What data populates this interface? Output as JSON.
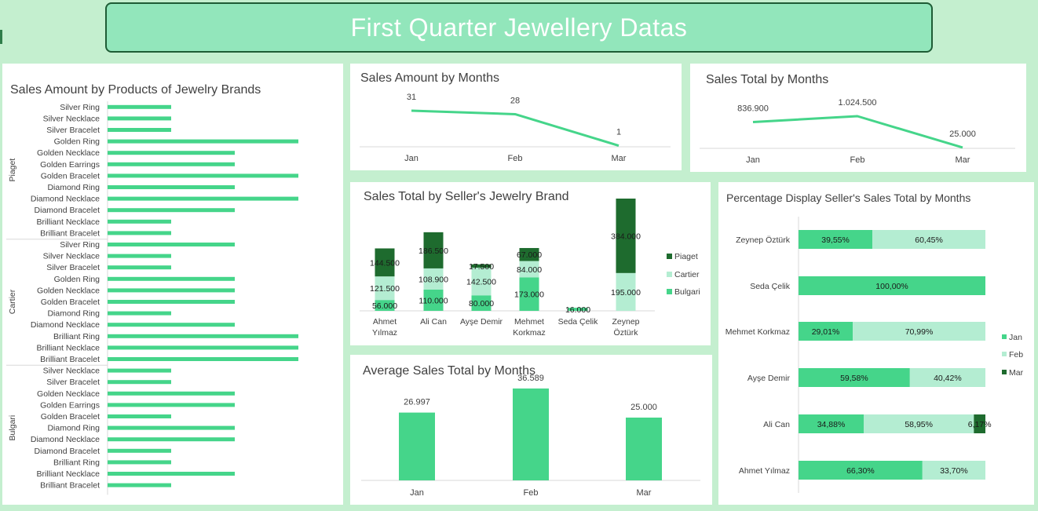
{
  "header": {
    "title": "First Quarter Jewellery Datas"
  },
  "colors": {
    "bulgari": "#45d58a",
    "cartier": "#b4edd2",
    "piaget": "#1e6b2e",
    "jan": "#45d58a",
    "feb": "#b4edd2",
    "mar": "#1e6b2e",
    "bar": "#45d58a",
    "line": "#45d58a"
  },
  "chart_data": [
    {
      "id": "products",
      "type": "bar",
      "orientation": "horizontal",
      "title": "Sales Amount by Products of Jewelry Brands",
      "groups": [
        {
          "name": "Piaget",
          "categories": [
            "Silver Ring",
            "Silver Necklace",
            "Silver Bracelet",
            "Golden Ring",
            "Golden Necklace",
            "Golden Earrings",
            "Golden Bracelet",
            "Diamond Ring",
            "Diamond Necklace",
            "Diamond Bracelet",
            "Brilliant Necklace",
            "Brilliant Bracelet"
          ],
          "values": [
            1,
            1,
            1,
            3,
            2,
            2,
            3,
            2,
            3,
            2,
            1,
            1
          ]
        },
        {
          "name": "Cartier",
          "categories": [
            "Silver Ring",
            "Silver Necklace",
            "Silver Bracelet",
            "Golden Ring",
            "Golden Necklace",
            "Golden Bracelet",
            "Diamond Ring",
            "Diamond Necklace",
            "Brilliant Ring",
            "Brilliant Necklace",
            "Brilliant Bracelet"
          ],
          "values": [
            2,
            1,
            1,
            2,
            2,
            2,
            1,
            2,
            3,
            3,
            3
          ]
        },
        {
          "name": "Bulgari",
          "categories": [
            "Silver Necklace",
            "Silver Bracelet",
            "Golden Necklace",
            "Golden Earrings",
            "Golden Bracelet",
            "Diamond Ring",
            "Diamond Necklace",
            "Diamond Bracelet",
            "Brilliant Ring",
            "Brilliant Necklace",
            "Brilliant Bracelet"
          ],
          "values": [
            1,
            1,
            2,
            2,
            1,
            2,
            2,
            1,
            1,
            2,
            1
          ]
        }
      ],
      "xlim": [
        0,
        3
      ]
    },
    {
      "id": "amount_months",
      "type": "line",
      "title": "Sales Amount by Months",
      "categories": [
        "Jan",
        "Feb",
        "Mar"
      ],
      "values": [
        31,
        28,
        1
      ],
      "labels": [
        "31",
        "28",
        "1"
      ]
    },
    {
      "id": "total_months",
      "type": "line",
      "title": "Sales Total by Months",
      "categories": [
        "Jan",
        "Feb",
        "Mar"
      ],
      "values": [
        836900,
        1024500,
        25000
      ],
      "labels": [
        "836.900",
        "1.024.500",
        "25.000"
      ]
    },
    {
      "id": "seller_brand",
      "type": "bar",
      "stacked": true,
      "title": "Sales Total by Seller's Jewelry Brand",
      "categories": [
        "Ahmet Yılmaz",
        "Ali Can",
        "Ayşe Demir",
        "Mehmet Korkmaz",
        "Seda Çelik",
        "Zeynep Öztürk"
      ],
      "category_lines": [
        [
          "Ahmet",
          "Yılmaz"
        ],
        [
          "Ali Can"
        ],
        [
          "Ayşe Demir"
        ],
        [
          "Mehmet",
          "Korkmaz"
        ],
        [
          "Seda Çelik"
        ],
        [
          "Zeynep",
          "Öztürk"
        ]
      ],
      "series": [
        {
          "name": "Bulgari",
          "values": [
            56000,
            110000,
            80000,
            173000,
            16000,
            0
          ],
          "labels": [
            "56.000",
            "110.000",
            "80.000",
            "173.000",
            "16.000",
            ""
          ]
        },
        {
          "name": "Cartier",
          "values": [
            121500,
            108900,
            142500,
            84000,
            0,
            195000
          ],
          "labels": [
            "121.500",
            "108.900",
            "142.500",
            "84.000",
            "",
            "195.000"
          ]
        },
        {
          "name": "Piaget",
          "values": [
            144500,
            186500,
            17500,
            67000,
            0,
            384000
          ],
          "labels": [
            "144.500",
            "186.500",
            "17.500",
            "67.000",
            "",
            "384.000"
          ]
        }
      ],
      "legend": "right"
    },
    {
      "id": "percentage",
      "type": "bar",
      "orientation": "horizontal",
      "stacked": true,
      "percent": true,
      "title": "Percentage Display Seller's Sales Total by Months",
      "categories": [
        "Zeynep Öztürk",
        "Seda Çelik",
        "Mehmet Korkmaz",
        "Ayşe Demir",
        "Ali Can",
        "Ahmet Yılmaz"
      ],
      "series": [
        {
          "name": "Jan",
          "values": [
            39.55,
            100,
            29.01,
            59.58,
            34.88,
            66.3
          ],
          "labels": [
            "39,55%",
            "100,00%",
            "29,01%",
            "59,58%",
            "34,88%",
            "66,30%"
          ]
        },
        {
          "name": "Feb",
          "values": [
            60.45,
            0,
            70.99,
            40.42,
            58.95,
            33.7
          ],
          "labels": [
            "60,45%",
            "",
            "70,99%",
            "40,42%",
            "58,95%",
            "33,70%"
          ]
        },
        {
          "name": "Mar",
          "values": [
            0,
            0,
            0,
            0,
            6.17,
            0
          ],
          "labels": [
            "",
            "",
            "",
            "",
            "6,17%",
            ""
          ]
        }
      ],
      "legend": "right"
    },
    {
      "id": "average_months",
      "type": "bar",
      "title": "Average Sales Total by Months",
      "categories": [
        "Jan",
        "Feb",
        "Mar"
      ],
      "values": [
        26997,
        36589,
        25000
      ],
      "labels": [
        "26.997",
        "36.589",
        "25.000"
      ],
      "ylim": [
        0,
        40000
      ]
    }
  ]
}
